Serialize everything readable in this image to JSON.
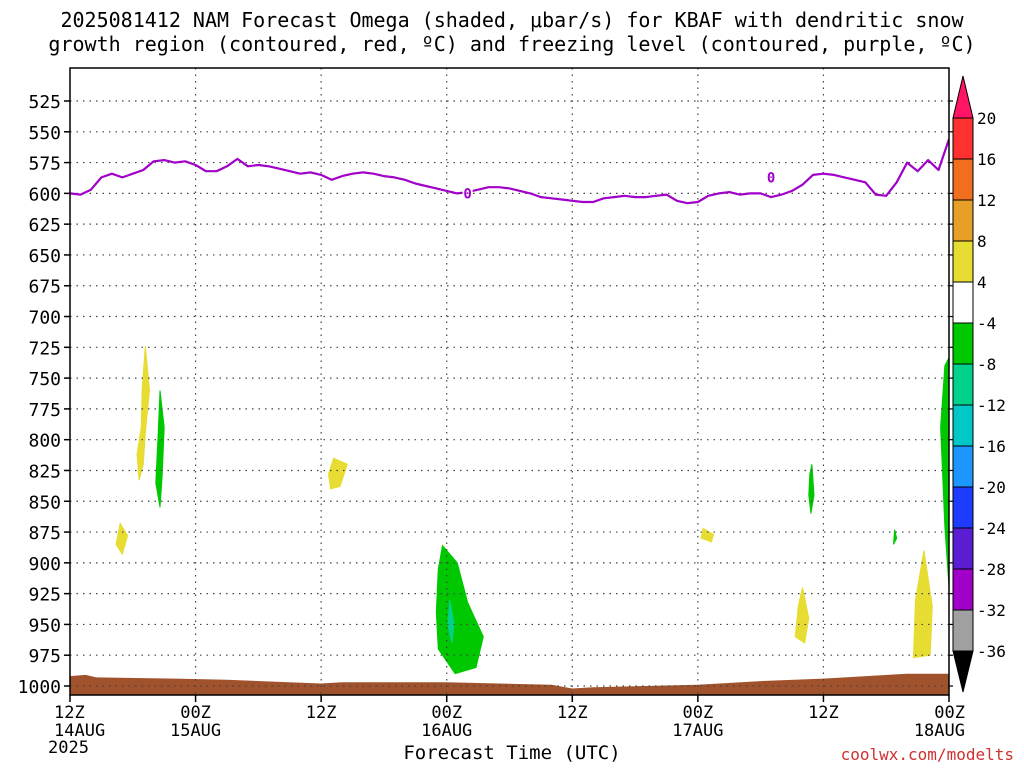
{
  "title_line1": "2025081412 NAM Forecast Omega (shaded, μbar/s) for KBAF with dendritic snow",
  "title_line2": "growth region (contoured, red, ºC) and freezing level (contoured, purple, ºC)",
  "credit": "coolwx.com/modelts",
  "chart_data": {
    "type": "heatmap",
    "title": "2025081412 NAM Forecast Omega (shaded, μbar/s) for KBAF with dendritic snow growth region (contoured, red, ºC) and freezing level (contoured, purple, ºC)",
    "xlabel": "Forecast Time (UTC)",
    "ylabel": "",
    "year_label": "2025",
    "x_unit": "hours from 2025-08-14 12Z",
    "xlim": [
      0,
      84
    ],
    "ylim": [
      1010,
      510
    ],
    "x_ticks": [
      {
        "x": 0,
        "hour": "12Z",
        "date": "14AUG"
      },
      {
        "x": 12,
        "hour": "00Z",
        "date": "15AUG"
      },
      {
        "x": 24,
        "hour": "12Z",
        "date": ""
      },
      {
        "x": 36,
        "hour": "00Z",
        "date": "16AUG"
      },
      {
        "x": 48,
        "hour": "12Z",
        "date": ""
      },
      {
        "x": 60,
        "hour": "00Z",
        "date": "17AUG"
      },
      {
        "x": 72,
        "hour": "12Z",
        "date": ""
      },
      {
        "x": 84,
        "hour": "00Z",
        "date": "18AUG"
      }
    ],
    "y_ticks": [
      525,
      550,
      575,
      600,
      625,
      650,
      675,
      700,
      725,
      750,
      775,
      800,
      825,
      850,
      875,
      900,
      925,
      950,
      975,
      1000
    ],
    "grid": true,
    "colorbar": {
      "levels": [
        "20",
        "16",
        "12",
        "8",
        "4",
        "-4",
        "-8",
        "-12",
        "-16",
        "-20",
        "-24",
        "-28",
        "-32",
        "-36"
      ],
      "colors": [
        "#ff1466",
        "#ff3030",
        "#f06e1e",
        "#e6a028",
        "#e6dc32",
        "#ffffff",
        "#00c800",
        "#00d28c",
        "#00c8c8",
        "#1e96ff",
        "#1e3cff",
        "#5a1ed2",
        "#a000c8",
        "#a0a0a0",
        "#000000"
      ]
    },
    "freezing_level": {
      "label": "0",
      "color": "#a000c8",
      "points": [
        [
          0,
          600
        ],
        [
          1,
          601
        ],
        [
          2,
          597
        ],
        [
          3,
          587
        ],
        [
          4,
          584
        ],
        [
          5,
          587
        ],
        [
          6,
          584
        ],
        [
          7,
          581
        ],
        [
          8,
          574
        ],
        [
          9,
          573
        ],
        [
          10,
          575
        ],
        [
          11,
          574
        ],
        [
          12,
          577
        ],
        [
          13,
          582
        ],
        [
          14,
          582
        ],
        [
          15,
          578
        ],
        [
          16,
          572
        ],
        [
          17,
          578
        ],
        [
          18,
          577
        ],
        [
          19,
          578
        ],
        [
          20,
          580
        ],
        [
          21,
          582
        ],
        [
          22,
          584
        ],
        [
          23,
          583
        ],
        [
          24,
          585
        ],
        [
          25,
          589
        ],
        [
          26,
          586
        ],
        [
          27,
          584
        ],
        [
          28,
          583
        ],
        [
          29,
          584
        ],
        [
          30,
          586
        ],
        [
          31,
          587
        ],
        [
          32,
          589
        ],
        [
          33,
          592
        ],
        [
          34,
          594
        ],
        [
          35,
          596
        ],
        [
          36,
          598
        ],
        [
          37,
          600
        ],
        [
          38,
          599
        ],
        [
          39,
          597
        ],
        [
          40,
          595
        ],
        [
          41,
          595
        ],
        [
          42,
          596
        ],
        [
          43,
          598
        ],
        [
          44,
          600
        ],
        [
          45,
          603
        ],
        [
          46,
          604
        ],
        [
          47,
          605
        ],
        [
          48,
          606
        ],
        [
          49,
          607
        ],
        [
          50,
          607
        ],
        [
          51,
          604
        ],
        [
          52,
          603
        ],
        [
          53,
          602
        ],
        [
          54,
          603
        ],
        [
          55,
          603
        ],
        [
          56,
          602
        ],
        [
          57,
          601
        ],
        [
          58,
          606
        ],
        [
          59,
          608
        ],
        [
          60,
          607
        ],
        [
          61,
          602
        ],
        [
          62,
          600
        ],
        [
          63,
          599
        ],
        [
          64,
          601
        ],
        [
          65,
          600
        ],
        [
          66,
          600
        ],
        [
          67,
          603
        ],
        [
          68,
          601
        ],
        [
          69,
          598
        ],
        [
          70,
          593
        ],
        [
          71,
          585
        ],
        [
          72,
          584
        ],
        [
          73,
          585
        ],
        [
          74,
          587
        ],
        [
          75,
          589
        ],
        [
          76,
          591
        ],
        [
          77,
          601
        ],
        [
          78,
          602
        ],
        [
          79,
          591
        ],
        [
          80,
          575
        ],
        [
          81,
          582
        ],
        [
          82,
          573
        ],
        [
          83,
          581
        ],
        [
          84,
          556
        ]
      ],
      "label_positions": [
        [
          38,
          600
        ],
        [
          67,
          587
        ]
      ]
    },
    "omega_regions": [
      {
        "value_range": [
          4,
          8
        ],
        "color": "#e6dc32",
        "outline": [
          [
            7.2,
            724
          ],
          [
            7.6,
            760
          ],
          [
            7.2,
            795
          ],
          [
            7.0,
            820
          ],
          [
            6.6,
            833
          ],
          [
            6.4,
            812
          ],
          [
            6.8,
            790
          ],
          [
            6.9,
            758
          ]
        ]
      },
      {
        "value_range": [
          -8,
          -4
        ],
        "color": "#00c800",
        "outline": [
          [
            8.6,
            760
          ],
          [
            9.0,
            790
          ],
          [
            8.8,
            830
          ],
          [
            8.6,
            855
          ],
          [
            8.2,
            835
          ],
          [
            8.4,
            800
          ]
        ]
      },
      {
        "value_range": [
          4,
          8
        ],
        "color": "#e6dc32",
        "outline": [
          [
            4.8,
            868
          ],
          [
            5.5,
            878
          ],
          [
            5.0,
            893
          ],
          [
            4.4,
            885
          ]
        ]
      },
      {
        "value_range": [
          4,
          8
        ],
        "color": "#e6dc32",
        "outline": [
          [
            25.2,
            815
          ],
          [
            26.5,
            820
          ],
          [
            25.8,
            838
          ],
          [
            24.9,
            840
          ],
          [
            24.7,
            828
          ]
        ]
      },
      {
        "value_range": [
          -8,
          -4
        ],
        "color": "#00c800",
        "outline": [
          [
            35.6,
            886
          ],
          [
            37.0,
            900
          ],
          [
            38.0,
            932
          ],
          [
            39.5,
            960
          ],
          [
            38.8,
            985
          ],
          [
            36.8,
            990
          ],
          [
            35.2,
            970
          ],
          [
            35.0,
            940
          ],
          [
            35.2,
            905
          ]
        ]
      },
      {
        "value_range": [
          -12,
          -8
        ],
        "color": "#00d28c",
        "outline": [
          [
            36.3,
            930
          ],
          [
            36.7,
            950
          ],
          [
            36.5,
            965
          ],
          [
            36.1,
            950
          ]
        ]
      },
      {
        "value_range": [
          4,
          8
        ],
        "color": "#e6dc32",
        "outline": [
          [
            60.5,
            872
          ],
          [
            61.5,
            877
          ],
          [
            61.3,
            883
          ],
          [
            60.3,
            880
          ]
        ]
      },
      {
        "value_range": [
          -8,
          -4
        ],
        "color": "#00c800",
        "outline": [
          [
            70.9,
            820
          ],
          [
            71.1,
            845
          ],
          [
            70.8,
            860
          ],
          [
            70.6,
            845
          ],
          [
            70.7,
            828
          ]
        ]
      },
      {
        "value_range": [
          4,
          8
        ],
        "color": "#e6dc32",
        "outline": [
          [
            70.0,
            920
          ],
          [
            70.6,
            945
          ],
          [
            70.2,
            965
          ],
          [
            69.3,
            960
          ],
          [
            69.6,
            935
          ]
        ]
      },
      {
        "value_range": [
          -8,
          -4
        ],
        "color": "#00c800",
        "outline": [
          [
            78.8,
            873
          ],
          [
            79.0,
            880
          ],
          [
            78.7,
            885
          ]
        ]
      },
      {
        "value_range": [
          4,
          8
        ],
        "color": "#e6dc32",
        "outline": [
          [
            81.6,
            890
          ],
          [
            82.4,
            935
          ],
          [
            82.2,
            975
          ],
          [
            80.6,
            977
          ],
          [
            80.8,
            930
          ]
        ]
      },
      {
        "value_range": [
          -8,
          -4
        ],
        "color": "#00c800",
        "outline": [
          [
            84.2,
            730
          ],
          [
            84.4,
            800
          ],
          [
            84.4,
            880
          ],
          [
            84.3,
            920
          ],
          [
            84.0,
            920
          ],
          [
            83.6,
            870
          ],
          [
            83.2,
            790
          ],
          [
            83.6,
            740
          ]
        ]
      }
    ],
    "terrain": {
      "color": "#a0522d",
      "points": [
        [
          0,
          992
        ],
        [
          1.5,
          991
        ],
        [
          2.5,
          993
        ],
        [
          10,
          994
        ],
        [
          15,
          995
        ],
        [
          24,
          998
        ],
        [
          26,
          997
        ],
        [
          36,
          997
        ],
        [
          46,
          999
        ],
        [
          48,
          1002
        ],
        [
          50,
          1001
        ],
        [
          60,
          999
        ],
        [
          66,
          996
        ],
        [
          72,
          994
        ],
        [
          80,
          990
        ],
        [
          84,
          990
        ]
      ]
    }
  }
}
